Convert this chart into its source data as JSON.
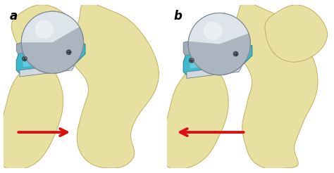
{
  "background_color": "#ffffff",
  "label_a": "a",
  "label_b": "b",
  "label_fontsize": 12,
  "label_fontweight": "bold",
  "bone_color_light": "#e8e0a0",
  "bone_color_mid": "#d4c870",
  "bone_color_shadow": "#b8a848",
  "bone_edge_color": "#c0b060",
  "implant_metal_light": "#d0d8e0",
  "implant_metal_mid": "#a0abb8",
  "implant_metal_dark": "#707888",
  "implant_cyan_light": "#80d8e8",
  "implant_cyan_mid": "#40b8cc",
  "implant_cyan_dark": "#208898",
  "ball_highlight": "#dde4ea",
  "ball_mid": "#aab5c0",
  "ball_shadow": "#7888a0",
  "arrow_color": "#dd1111",
  "screw_color": "#505860"
}
